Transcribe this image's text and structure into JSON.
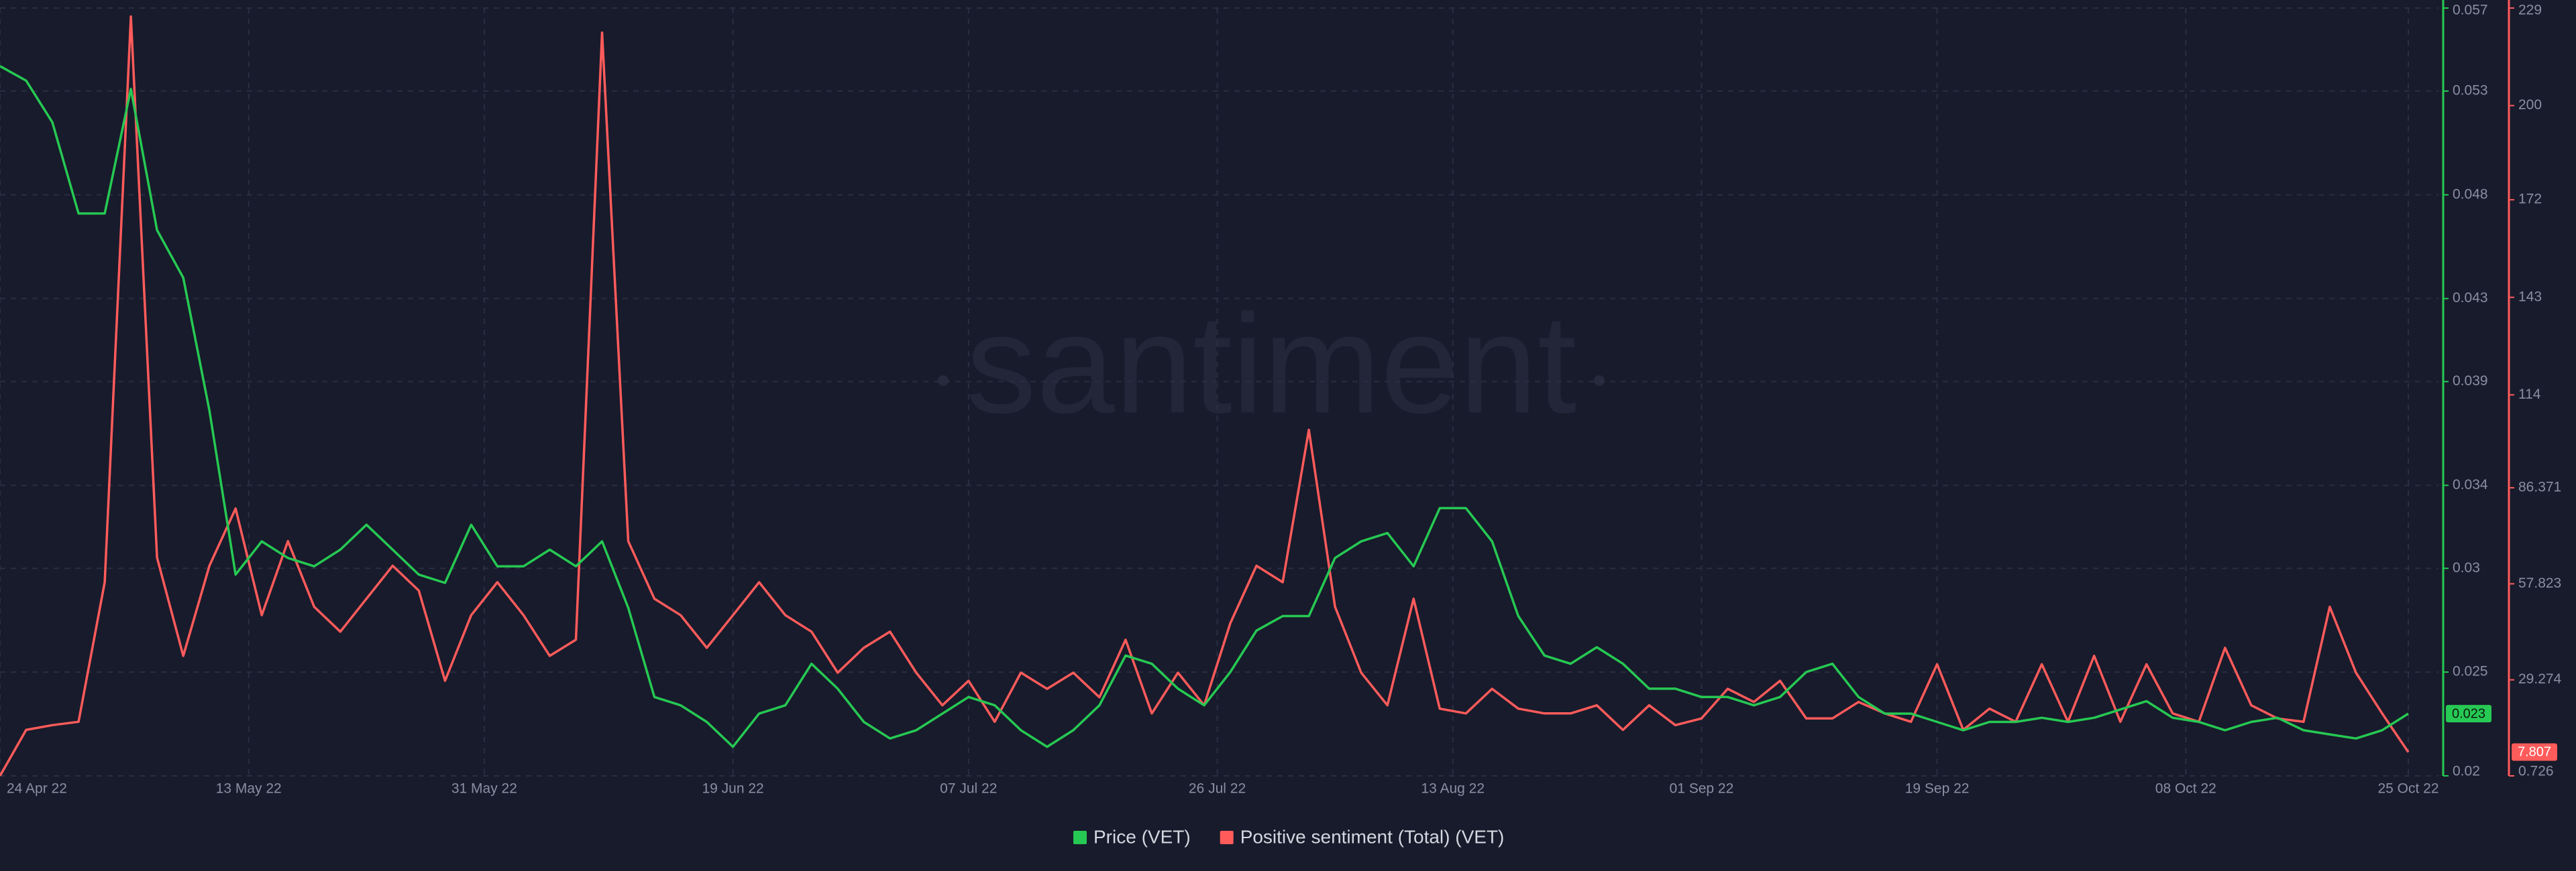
{
  "chart_data": {
    "type": "line",
    "watermark": "santiment",
    "x": [
      "2022-04-24",
      "2022-04-26",
      "2022-04-28",
      "2022-04-30",
      "2022-05-02",
      "2022-05-04",
      "2022-05-06",
      "2022-05-08",
      "2022-05-10",
      "2022-05-12",
      "2022-05-14",
      "2022-05-16",
      "2022-05-18",
      "2022-05-20",
      "2022-05-22",
      "2022-05-24",
      "2022-05-26",
      "2022-05-28",
      "2022-05-30",
      "2022-06-01",
      "2022-06-03",
      "2022-06-05",
      "2022-06-07",
      "2022-06-09",
      "2022-06-11",
      "2022-06-13",
      "2022-06-15",
      "2022-06-17",
      "2022-06-19",
      "2022-06-21",
      "2022-06-23",
      "2022-06-25",
      "2022-06-27",
      "2022-06-29",
      "2022-07-01",
      "2022-07-03",
      "2022-07-05",
      "2022-07-07",
      "2022-07-09",
      "2022-07-11",
      "2022-07-13",
      "2022-07-15",
      "2022-07-17",
      "2022-07-19",
      "2022-07-21",
      "2022-07-23",
      "2022-07-25",
      "2022-07-27",
      "2022-07-29",
      "2022-07-31",
      "2022-08-02",
      "2022-08-04",
      "2022-08-06",
      "2022-08-08",
      "2022-08-10",
      "2022-08-12",
      "2022-08-14",
      "2022-08-16",
      "2022-08-18",
      "2022-08-20",
      "2022-08-22",
      "2022-08-24",
      "2022-08-26",
      "2022-08-28",
      "2022-08-30",
      "2022-09-01",
      "2022-09-03",
      "2022-09-05",
      "2022-09-07",
      "2022-09-09",
      "2022-09-11",
      "2022-09-13",
      "2022-09-15",
      "2022-09-17",
      "2022-09-19",
      "2022-09-21",
      "2022-09-23",
      "2022-09-25",
      "2022-09-27",
      "2022-09-29",
      "2022-10-01",
      "2022-10-03",
      "2022-10-05",
      "2022-10-07",
      "2022-10-09",
      "2022-10-11",
      "2022-10-13",
      "2022-10-15",
      "2022-10-17",
      "2022-10-19",
      "2022-10-21",
      "2022-10-23",
      "2022-10-25"
    ],
    "xlim": [
      "2022-04-24",
      "2022-10-25"
    ],
    "xticks": [
      {
        "value": "2022-04-24",
        "label": "24 Apr 22"
      },
      {
        "value": "2022-05-13",
        "label": "13 May 22"
      },
      {
        "value": "2022-05-31",
        "label": "31 May 22"
      },
      {
        "value": "2022-06-19",
        "label": "19 Jun 22"
      },
      {
        "value": "2022-07-07",
        "label": "07 Jul 22"
      },
      {
        "value": "2022-07-26",
        "label": "26 Jul 22"
      },
      {
        "value": "2022-08-13",
        "label": "13 Aug 22"
      },
      {
        "value": "2022-09-01",
        "label": "01 Sep 22"
      },
      {
        "value": "2022-09-19",
        "label": "19 Sep 22"
      },
      {
        "value": "2022-10-08",
        "label": "08 Oct 22"
      },
      {
        "value": "2022-10-25",
        "label": "25 Oct 22"
      }
    ],
    "ylim": [
      0.02,
      0.057
    ],
    "yticks": [
      0.02,
      0.025,
      0.03,
      0.034,
      0.039,
      0.043,
      0.048,
      0.053,
      0.057
    ],
    "y2lim": [
      0.726,
      229
    ],
    "y2ticks": [
      0.726,
      29.274,
      57.823,
      86.371,
      114,
      143,
      172,
      200,
      229
    ],
    "grid": true,
    "legend": "bottom",
    "series": [
      {
        "name": "Price (VET)",
        "color": "#26c953",
        "axis": "y",
        "values": [
          0.0542,
          0.0535,
          0.0515,
          0.0471,
          0.0471,
          0.0531,
          0.0463,
          0.044,
          0.0376,
          0.0297,
          0.0313,
          0.0305,
          0.0301,
          0.0309,
          0.0321,
          0.0309,
          0.0297,
          0.0293,
          0.0321,
          0.0301,
          0.0301,
          0.0309,
          0.0301,
          0.0313,
          0.0281,
          0.0238,
          0.0234,
          0.0226,
          0.0214,
          0.023,
          0.0234,
          0.0254,
          0.0242,
          0.0226,
          0.0218,
          0.0222,
          0.023,
          0.0238,
          0.0234,
          0.0222,
          0.0214,
          0.0222,
          0.0234,
          0.0258,
          0.0254,
          0.0242,
          0.0234,
          0.025,
          0.027,
          0.0277,
          0.0277,
          0.0305,
          0.0313,
          0.0317,
          0.0301,
          0.0329,
          0.0329,
          0.0313,
          0.0277,
          0.0258,
          0.0254,
          0.0262,
          0.0254,
          0.0242,
          0.0242,
          0.0238,
          0.0238,
          0.0234,
          0.0238,
          0.025,
          0.0254,
          0.0238,
          0.023,
          0.023,
          0.0226,
          0.0222,
          0.0226,
          0.0226,
          0.0228,
          0.0226,
          0.0228,
          0.0232,
          0.0236,
          0.0228,
          0.0226,
          0.0222,
          0.0226,
          0.0228,
          0.0222,
          0.022,
          0.0218,
          0.0222,
          0.023
        ]
      },
      {
        "name": "Positive sentiment (Total) (VET)",
        "color": "#ff5b5b",
        "axis": "y2",
        "values": [
          0.726,
          14.4,
          15.8,
          16.8,
          58.3,
          226.5,
          65.6,
          36.4,
          63.2,
          80.2,
          48.5,
          70.5,
          51.0,
          43.6,
          53.4,
          63.2,
          55.8,
          29.0,
          48.5,
          58.3,
          48.5,
          36.4,
          41.2,
          221.7,
          70.5,
          53.4,
          48.5,
          38.8,
          48.5,
          58.3,
          48.5,
          43.6,
          31.4,
          38.8,
          43.6,
          31.4,
          21.7,
          29.0,
          16.8,
          31.4,
          26.6,
          31.4,
          24.1,
          41.2,
          19.3,
          31.4,
          21.7,
          46.1,
          63.2,
          58.3,
          103.6,
          51.0,
          31.4,
          21.7,
          53.4,
          20.7,
          19.3,
          26.6,
          20.7,
          19.3,
          19.3,
          21.7,
          14.4,
          21.7,
          15.8,
          17.8,
          26.6,
          22.7,
          29.0,
          17.8,
          17.8,
          22.7,
          19.3,
          16.8,
          33.9,
          14.4,
          20.7,
          16.8,
          33.9,
          16.8,
          36.4,
          16.8,
          33.9,
          19.3,
          16.8,
          38.8,
          21.7,
          17.8,
          16.8,
          51.0,
          31.4,
          19.3,
          7.807
        ]
      }
    ]
  }
}
